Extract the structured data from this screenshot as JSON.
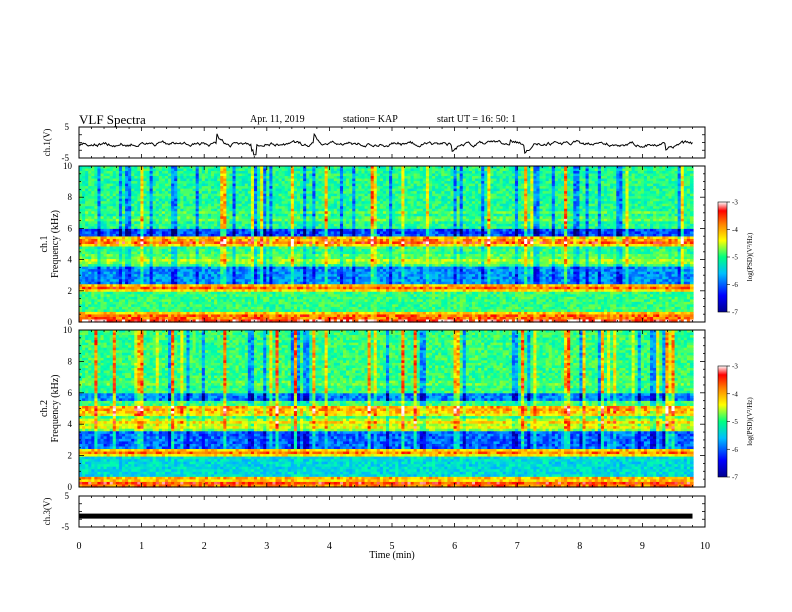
{
  "header": {
    "title": "VLF Spectra",
    "date": "Apr. 11, 2019",
    "station": "station= KAP",
    "start_ut": "start  UT =   16: 50: 1"
  },
  "chart_data": [
    {
      "type": "line",
      "panel": "ch.1 waveform",
      "ylabel": "ch.1(V)",
      "ylim": [
        -5,
        5
      ],
      "yticks": [
        "5",
        "-5"
      ],
      "xlim": [
        0,
        10
      ],
      "description_values": {
        "baseline_V": -0.5,
        "amplitude_V": 1.5
      },
      "color": "#000000"
    },
    {
      "type": "heatmap",
      "panel": "ch.1 spectrogram",
      "ylabel": "ch.1 Frequency (kHz)",
      "ylabel_lines": [
        "ch.1",
        "Frequency  (kHz)"
      ],
      "ylim": [
        0,
        10
      ],
      "yticks": [
        "0",
        "2",
        "4",
        "6",
        "8",
        "10"
      ],
      "xlim": [
        0,
        9.8
      ],
      "colorbar": {
        "label": "log(PSD)(V²/Hz)",
        "range": [
          -7,
          -3
        ],
        "ticks": [
          "-3",
          "-4",
          "-5",
          "-6",
          "-7"
        ],
        "colors": [
          "#00008f",
          "#0000ff",
          "#00bfff",
          "#00ff80",
          "#ffff00",
          "#ff8000",
          "#ff0000",
          "#ffffff"
        ]
      },
      "bands_kHz": [
        {
          "freq": 0.1,
          "level": -3.2
        },
        {
          "freq": 0.4,
          "level": -3.6
        },
        {
          "freq": 0.5,
          "level": -3.8
        },
        {
          "freq": 2.2,
          "level": -3.5
        },
        {
          "freq": 3.9,
          "level": -4.3
        },
        {
          "freq": 4.2,
          "level": -4.6
        },
        {
          "freq": 5.1,
          "level": -3.4
        },
        {
          "freq": 5.3,
          "level": -3.6
        },
        {
          "freq": 6.6,
          "level": -4.6
        },
        {
          "freq": 7.0,
          "level": -4.8
        }
      ]
    },
    {
      "type": "heatmap",
      "panel": "ch.2 spectrogram",
      "ylabel": "ch.2 Frequency (kHz)",
      "ylabel_lines": [
        "ch.2",
        "Frequency  (kHz)"
      ],
      "ylim": [
        0,
        10
      ],
      "yticks": [
        "0",
        "2",
        "4",
        "6",
        "8",
        "10"
      ],
      "xlim": [
        0,
        9.8
      ],
      "colorbar": {
        "label": "log(PSD)(V²/Hz)",
        "range": [
          -7,
          -3
        ],
        "ticks": [
          "-3",
          "-4",
          "-5",
          "-6",
          "-7"
        ],
        "colors": [
          "#00008f",
          "#0000ff",
          "#00bfff",
          "#00ff80",
          "#ffff00",
          "#ff8000",
          "#ff0000",
          "#ffffff"
        ]
      },
      "bands_kHz": [
        {
          "freq": 0.2,
          "level": -3.3
        },
        {
          "freq": 0.5,
          "level": -3.7
        },
        {
          "freq": 2.2,
          "level": -3.6
        },
        {
          "freq": 3.8,
          "level": -4.2
        },
        {
          "freq": 4.1,
          "level": -4.0
        },
        {
          "freq": 4.7,
          "level": -3.8
        },
        {
          "freq": 5.0,
          "level": -3.6
        },
        {
          "freq": 6.6,
          "level": -4.6
        }
      ]
    },
    {
      "type": "line",
      "panel": "ch.3 waveform",
      "ylabel": "ch.3(V)",
      "ylim": [
        -5,
        5
      ],
      "yticks": [
        "5",
        "-5"
      ],
      "xlim": [
        0,
        10
      ],
      "value_V": -1.5,
      "color": "#000000"
    }
  ],
  "xaxis": {
    "label": "Time  (min)",
    "range": [
      0,
      10
    ],
    "ticks": [
      "0",
      "1",
      "2",
      "3",
      "4",
      "5",
      "6",
      "7",
      "8",
      "9",
      "10"
    ]
  }
}
